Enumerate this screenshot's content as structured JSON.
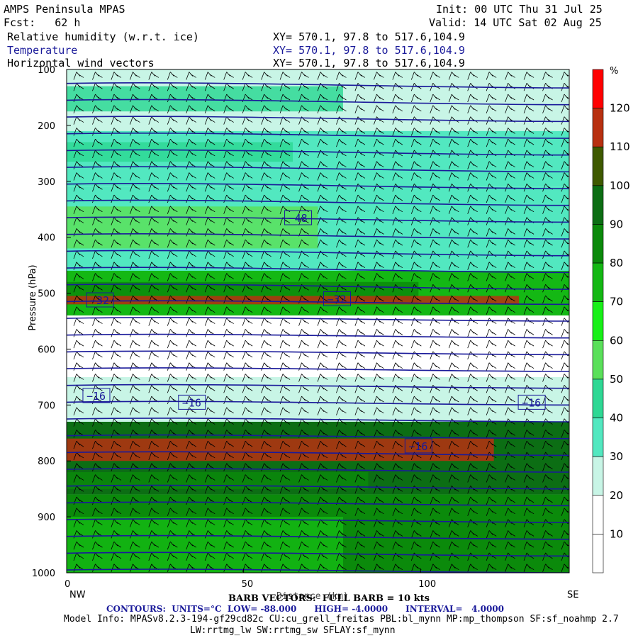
{
  "header": {
    "model": "AMPS Peninsula MPAS",
    "init": "Init: 00 UTC Thu 31 Jul 25",
    "fcst": "Fcst:   62 h",
    "valid": "Valid: 14 UTC Sat 02 Aug 25"
  },
  "fields": [
    {
      "name": "Relative humidity (w.r.t. ice)",
      "xy": "XY= 570.1, 97.8 to 517.6,104.9"
    },
    {
      "name": "Temperature",
      "xy": "XY= 570.1, 97.8 to 517.6,104.9"
    },
    {
      "name": "Horizontal wind vectors",
      "xy": "XY= 570.1, 97.8 to 517.6,104.9"
    }
  ],
  "footer": {
    "barb": "BARB VECTORS:  FULL BARB = 10 kts",
    "distance_label": "Distance (km)",
    "contours": "CONTOURS:  UNITS=°C  LOW= -88.000      HIGH= -4.0000      INTERVAL=   4.0000",
    "model_info_1": "Model Info: MPASv8.2.3-194-gf29cd82c CU:cu_grell_freitas PBL:bl_mynn MP:mp_thompson SF:sf_noahmp 2.7",
    "model_info_2": "LW:rrtmg_lw SW:rrtmg_sw SFLAY:sf_mynn"
  },
  "colors": {
    "temperature_contour": "#1a1a9a",
    "rh_scale": [
      "#ffffff",
      "#ffffff",
      "#ffffff",
      "#c8f5e6",
      "#52e8c0",
      "#2ed894",
      "#5ae05a",
      "#18f018",
      "#14b814",
      "#0b8a0b",
      "#0c6e14",
      "#3f5a00",
      "#b83010",
      "#ff0000"
    ]
  },
  "chart_data": {
    "type": "heatmap",
    "title": "Relative humidity (w.r.t. ice)",
    "ylabel": "Pressure (hPa)",
    "xlabel": "Distance (km)",
    "x_left_label": "NW",
    "x_right_label": "SE",
    "x_ticks": [
      0,
      50,
      100
    ],
    "y_ticks": [
      100,
      200,
      300,
      400,
      500,
      600,
      700,
      800,
      900,
      1000
    ],
    "xlim": [
      0,
      142
    ],
    "ylim": [
      1000,
      100
    ],
    "colorbar": {
      "unit": "%",
      "levels": [
        10,
        20,
        30,
        40,
        50,
        60,
        70,
        80,
        90,
        100,
        110,
        120
      ]
    },
    "rh_layers": [
      {
        "p_top": 100,
        "p_bottom": 210,
        "rh": 35
      },
      {
        "p_top": 210,
        "p_bottom": 310,
        "rh": 45
      },
      {
        "p_top": 310,
        "p_bottom": 460,
        "rh": 45
      },
      {
        "p_top": 460,
        "p_bottom": 540,
        "rh": 85
      },
      {
        "p_top": 540,
        "p_bottom": 650,
        "rh": 15
      },
      {
        "p_top": 650,
        "p_bottom": 730,
        "rh": 30
      },
      {
        "p_top": 730,
        "p_bottom": 860,
        "rh": 105
      },
      {
        "p_top": 860,
        "p_bottom": 1000,
        "rh": 95
      }
    ],
    "temperature_contours": [
      {
        "value": -48,
        "x_label": 62,
        "p": 365
      },
      {
        "value": -32,
        "x_label": 6,
        "p": 512
      },
      {
        "value": -32,
        "x_label": 73,
        "p": 510
      },
      {
        "value": -16,
        "x_label": 5,
        "p": 683
      },
      {
        "value": -16,
        "x_label": 32,
        "p": 695
      },
      {
        "value": -16,
        "x_label": 128,
        "p": 695
      },
      {
        "value": -16,
        "x_label": 96,
        "p": 773
      }
    ]
  }
}
